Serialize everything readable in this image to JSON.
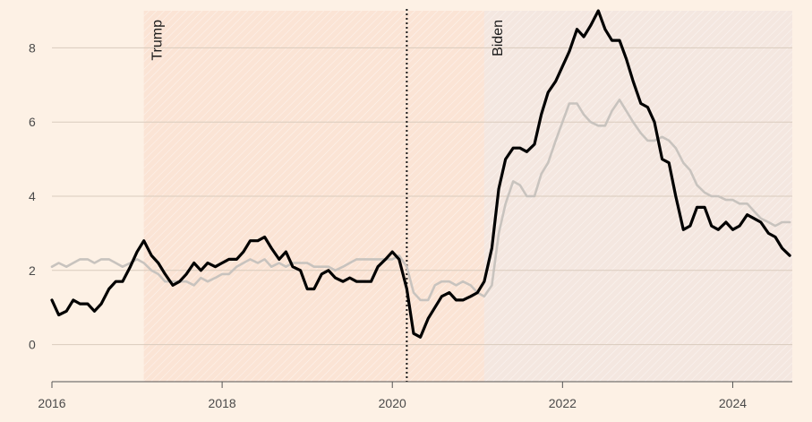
{
  "chart_data": {
    "type": "line",
    "title": "",
    "xlabel": "",
    "ylabel": "",
    "xlim": [
      2016.0,
      2024.7
    ],
    "ylim": [
      -1.0,
      9.0
    ],
    "x_ticks": [
      {
        "value": 2016,
        "label": "2016"
      },
      {
        "value": 2018,
        "label": "2018"
      },
      {
        "value": 2020,
        "label": "2020"
      },
      {
        "value": 2022,
        "label": "2022"
      },
      {
        "value": 2024,
        "label": "2024"
      }
    ],
    "y_ticks": [
      {
        "value": 0,
        "label": "0"
      },
      {
        "value": 2,
        "label": "2"
      },
      {
        "value": 4,
        "label": "4"
      },
      {
        "value": 6,
        "label": "6"
      },
      {
        "value": 8,
        "label": "8"
      }
    ],
    "regions": [
      {
        "label": "Trump",
        "start": 2017.08,
        "end": 2021.08,
        "fill": "#fbe4d5"
      },
      {
        "label": "Biden",
        "start": 2021.08,
        "end": 2024.7,
        "fill": "#f4e7e0"
      }
    ],
    "vline": {
      "x": 2020.17,
      "style": "dotted"
    },
    "grid": true,
    "legend": "none",
    "colors": {
      "background": "#fdf1e5",
      "grid": "#d9cbbd",
      "series_dark": "#000000",
      "series_light": "#c8c3be"
    },
    "series": [
      {
        "color": "#000000",
        "points": [
          [
            2016.0,
            1.2
          ],
          [
            2016.08,
            0.8
          ],
          [
            2016.17,
            0.9
          ],
          [
            2016.25,
            1.2
          ],
          [
            2016.33,
            1.1
          ],
          [
            2016.42,
            1.1
          ],
          [
            2016.5,
            0.9
          ],
          [
            2016.58,
            1.1
          ],
          [
            2016.67,
            1.5
          ],
          [
            2016.75,
            1.7
          ],
          [
            2016.83,
            1.7
          ],
          [
            2016.92,
            2.1
          ],
          [
            2017.0,
            2.5
          ],
          [
            2017.08,
            2.8
          ],
          [
            2017.17,
            2.4
          ],
          [
            2017.25,
            2.2
          ],
          [
            2017.33,
            1.9
          ],
          [
            2017.42,
            1.6
          ],
          [
            2017.5,
            1.7
          ],
          [
            2017.58,
            1.9
          ],
          [
            2017.67,
            2.2
          ],
          [
            2017.75,
            2.0
          ],
          [
            2017.83,
            2.2
          ],
          [
            2017.92,
            2.1
          ],
          [
            2018.0,
            2.2
          ],
          [
            2018.08,
            2.3
          ],
          [
            2018.17,
            2.3
          ],
          [
            2018.25,
            2.5
          ],
          [
            2018.33,
            2.8
          ],
          [
            2018.42,
            2.8
          ],
          [
            2018.5,
            2.9
          ],
          [
            2018.58,
            2.6
          ],
          [
            2018.67,
            2.3
          ],
          [
            2018.75,
            2.5
          ],
          [
            2018.83,
            2.1
          ],
          [
            2018.92,
            2.0
          ],
          [
            2019.0,
            1.5
          ],
          [
            2019.08,
            1.5
          ],
          [
            2019.17,
            1.9
          ],
          [
            2019.25,
            2.0
          ],
          [
            2019.33,
            1.8
          ],
          [
            2019.42,
            1.7
          ],
          [
            2019.5,
            1.8
          ],
          [
            2019.58,
            1.7
          ],
          [
            2019.67,
            1.7
          ],
          [
            2019.75,
            1.7
          ],
          [
            2019.83,
            2.1
          ],
          [
            2019.92,
            2.3
          ],
          [
            2020.0,
            2.5
          ],
          [
            2020.08,
            2.3
          ],
          [
            2020.17,
            1.5
          ],
          [
            2020.25,
            0.3
          ],
          [
            2020.33,
            0.2
          ],
          [
            2020.42,
            0.7
          ],
          [
            2020.5,
            1.0
          ],
          [
            2020.58,
            1.3
          ],
          [
            2020.67,
            1.4
          ],
          [
            2020.75,
            1.2
          ],
          [
            2020.83,
            1.2
          ],
          [
            2020.92,
            1.3
          ],
          [
            2021.0,
            1.4
          ],
          [
            2021.08,
            1.7
          ],
          [
            2021.17,
            2.6
          ],
          [
            2021.25,
            4.2
          ],
          [
            2021.33,
            5.0
          ],
          [
            2021.42,
            5.3
          ],
          [
            2021.5,
            5.3
          ],
          [
            2021.58,
            5.2
          ],
          [
            2021.67,
            5.4
          ],
          [
            2021.75,
            6.2
          ],
          [
            2021.83,
            6.8
          ],
          [
            2021.92,
            7.1
          ],
          [
            2022.0,
            7.5
          ],
          [
            2022.08,
            7.9
          ],
          [
            2022.17,
            8.5
          ],
          [
            2022.25,
            8.3
          ],
          [
            2022.33,
            8.6
          ],
          [
            2022.42,
            9.0
          ],
          [
            2022.5,
            8.5
          ],
          [
            2022.58,
            8.2
          ],
          [
            2022.67,
            8.2
          ],
          [
            2022.75,
            7.7
          ],
          [
            2022.83,
            7.1
          ],
          [
            2022.92,
            6.5
          ],
          [
            2023.0,
            6.4
          ],
          [
            2023.08,
            6.0
          ],
          [
            2023.17,
            5.0
          ],
          [
            2023.25,
            4.9
          ],
          [
            2023.33,
            4.0
          ],
          [
            2023.42,
            3.1
          ],
          [
            2023.5,
            3.2
          ],
          [
            2023.58,
            3.7
          ],
          [
            2023.67,
            3.7
          ],
          [
            2023.75,
            3.2
          ],
          [
            2023.83,
            3.1
          ],
          [
            2023.92,
            3.3
          ],
          [
            2024.0,
            3.1
          ],
          [
            2024.08,
            3.2
          ],
          [
            2024.17,
            3.5
          ],
          [
            2024.25,
            3.4
          ],
          [
            2024.33,
            3.3
          ],
          [
            2024.42,
            3.0
          ],
          [
            2024.5,
            2.9
          ],
          [
            2024.58,
            2.6
          ],
          [
            2024.67,
            2.4
          ]
        ]
      },
      {
        "color": "#c8c3be",
        "points": [
          [
            2016.0,
            2.1
          ],
          [
            2016.08,
            2.2
          ],
          [
            2016.17,
            2.1
          ],
          [
            2016.25,
            2.2
          ],
          [
            2016.33,
            2.3
          ],
          [
            2016.42,
            2.3
          ],
          [
            2016.5,
            2.2
          ],
          [
            2016.58,
            2.3
          ],
          [
            2016.67,
            2.3
          ],
          [
            2016.75,
            2.2
          ],
          [
            2016.83,
            2.1
          ],
          [
            2016.92,
            2.2
          ],
          [
            2017.0,
            2.3
          ],
          [
            2017.08,
            2.2
          ],
          [
            2017.17,
            2.0
          ],
          [
            2017.25,
            1.9
          ],
          [
            2017.33,
            1.7
          ],
          [
            2017.42,
            1.7
          ],
          [
            2017.5,
            1.7
          ],
          [
            2017.58,
            1.7
          ],
          [
            2017.67,
            1.6
          ],
          [
            2017.75,
            1.8
          ],
          [
            2017.83,
            1.7
          ],
          [
            2017.92,
            1.8
          ],
          [
            2018.0,
            1.9
          ],
          [
            2018.08,
            1.9
          ],
          [
            2018.17,
            2.1
          ],
          [
            2018.25,
            2.2
          ],
          [
            2018.33,
            2.3
          ],
          [
            2018.42,
            2.2
          ],
          [
            2018.5,
            2.3
          ],
          [
            2018.58,
            2.1
          ],
          [
            2018.67,
            2.2
          ],
          [
            2018.75,
            2.1
          ],
          [
            2018.83,
            2.2
          ],
          [
            2018.92,
            2.2
          ],
          [
            2019.0,
            2.2
          ],
          [
            2019.08,
            2.1
          ],
          [
            2019.17,
            2.1
          ],
          [
            2019.25,
            2.1
          ],
          [
            2019.33,
            2.0
          ],
          [
            2019.42,
            2.1
          ],
          [
            2019.5,
            2.2
          ],
          [
            2019.58,
            2.3
          ],
          [
            2019.67,
            2.3
          ],
          [
            2019.75,
            2.3
          ],
          [
            2019.83,
            2.3
          ],
          [
            2019.92,
            2.3
          ],
          [
            2020.0,
            2.3
          ],
          [
            2020.08,
            2.4
          ],
          [
            2020.17,
            2.1
          ],
          [
            2020.25,
            1.4
          ],
          [
            2020.33,
            1.2
          ],
          [
            2020.42,
            1.2
          ],
          [
            2020.5,
            1.6
          ],
          [
            2020.58,
            1.7
          ],
          [
            2020.67,
            1.7
          ],
          [
            2020.75,
            1.6
          ],
          [
            2020.83,
            1.7
          ],
          [
            2020.92,
            1.6
          ],
          [
            2021.0,
            1.4
          ],
          [
            2021.08,
            1.3
          ],
          [
            2021.17,
            1.6
          ],
          [
            2021.25,
            3.0
          ],
          [
            2021.33,
            3.8
          ],
          [
            2021.42,
            4.4
          ],
          [
            2021.5,
            4.3
          ],
          [
            2021.58,
            4.0
          ],
          [
            2021.67,
            4.0
          ],
          [
            2021.75,
            4.6
          ],
          [
            2021.83,
            4.9
          ],
          [
            2021.92,
            5.5
          ],
          [
            2022.0,
            6.0
          ],
          [
            2022.08,
            6.5
          ],
          [
            2022.17,
            6.5
          ],
          [
            2022.25,
            6.2
          ],
          [
            2022.33,
            6.0
          ],
          [
            2022.42,
            5.9
          ],
          [
            2022.5,
            5.9
          ],
          [
            2022.58,
            6.3
          ],
          [
            2022.67,
            6.6
          ],
          [
            2022.75,
            6.3
          ],
          [
            2022.83,
            6.0
          ],
          [
            2022.92,
            5.7
          ],
          [
            2023.0,
            5.5
          ],
          [
            2023.08,
            5.5
          ],
          [
            2023.17,
            5.6
          ],
          [
            2023.25,
            5.5
          ],
          [
            2023.33,
            5.3
          ],
          [
            2023.42,
            4.9
          ],
          [
            2023.5,
            4.7
          ],
          [
            2023.58,
            4.3
          ],
          [
            2023.67,
            4.1
          ],
          [
            2023.75,
            4.0
          ],
          [
            2023.83,
            4.0
          ],
          [
            2023.92,
            3.9
          ],
          [
            2024.0,
            3.9
          ],
          [
            2024.08,
            3.8
          ],
          [
            2024.17,
            3.8
          ],
          [
            2024.25,
            3.6
          ],
          [
            2024.33,
            3.4
          ],
          [
            2024.42,
            3.3
          ],
          [
            2024.5,
            3.2
          ],
          [
            2024.58,
            3.3
          ],
          [
            2024.67,
            3.3
          ]
        ]
      }
    ]
  }
}
